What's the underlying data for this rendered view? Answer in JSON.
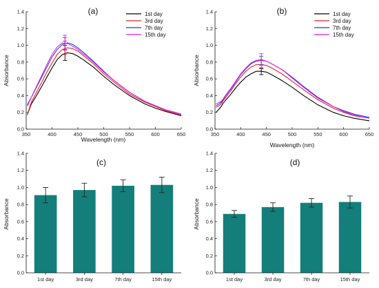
{
  "chart_data": [
    {
      "panel": "(a)",
      "type": "line",
      "xlabel": "Wavelength (nm)",
      "ylabel": "Absorbance",
      "xlim": [
        350,
        650
      ],
      "ylim": [
        0,
        1.4
      ],
      "xticks": [
        "350",
        "400",
        "450",
        "500",
        "550",
        "600",
        "650"
      ],
      "yticks": [
        "0.0",
        "0.2",
        "0.4",
        "0.6",
        "0.8",
        "1.0",
        "1.2",
        "1.4"
      ],
      "legend_position": "top-right",
      "series": [
        {
          "name": "1st day",
          "color": "#000000",
          "x": [
            352,
            360,
            370,
            380,
            390,
            400,
            410,
            420,
            430,
            440,
            450,
            460,
            480,
            500,
            520,
            550,
            580,
            600,
            620,
            650
          ],
          "y": [
            0.17,
            0.3,
            0.4,
            0.51,
            0.62,
            0.73,
            0.83,
            0.89,
            0.91,
            0.9,
            0.87,
            0.83,
            0.74,
            0.63,
            0.53,
            0.4,
            0.3,
            0.25,
            0.21,
            0.16
          ]
        },
        {
          "name": "3rd day",
          "color": "#e8242a",
          "x": [
            352,
            360,
            370,
            380,
            390,
            400,
            410,
            420,
            430,
            440,
            450,
            460,
            480,
            500,
            520,
            550,
            580,
            600,
            620,
            650
          ],
          "y": [
            0.17,
            0.32,
            0.44,
            0.56,
            0.68,
            0.79,
            0.89,
            0.95,
            0.97,
            0.96,
            0.93,
            0.88,
            0.78,
            0.66,
            0.56,
            0.42,
            0.32,
            0.27,
            0.22,
            0.17
          ]
        },
        {
          "name": "7th day",
          "color": "#1f3fe0",
          "x": [
            352,
            360,
            370,
            380,
            390,
            400,
            410,
            420,
            430,
            440,
            450,
            460,
            480,
            500,
            520,
            550,
            580,
            600,
            620,
            650
          ],
          "y": [
            0.29,
            0.38,
            0.5,
            0.62,
            0.74,
            0.86,
            0.95,
            1.01,
            1.03,
            1.01,
            0.97,
            0.92,
            0.81,
            0.69,
            0.58,
            0.44,
            0.33,
            0.28,
            0.23,
            0.18
          ]
        },
        {
          "name": "15th day",
          "color": "#e61be6",
          "x": [
            352,
            360,
            370,
            380,
            390,
            400,
            410,
            420,
            430,
            440,
            450,
            460,
            480,
            500,
            520,
            550,
            580,
            600,
            620,
            650
          ],
          "y": [
            0.27,
            0.38,
            0.51,
            0.64,
            0.77,
            0.89,
            0.98,
            1.03,
            1.02,
            0.99,
            0.95,
            0.9,
            0.8,
            0.68,
            0.58,
            0.44,
            0.33,
            0.28,
            0.23,
            0.18
          ]
        }
      ],
      "error_bars": [
        {
          "x": 425,
          "y": 0.91,
          "err": 0.09,
          "color": "#000000"
        },
        {
          "x": 425,
          "y": 0.97,
          "err": 0.08,
          "color": "#e8242a"
        },
        {
          "x": 425,
          "y": 1.02,
          "err": 0.07,
          "color": "#1f3fe0"
        },
        {
          "x": 425,
          "y": 1.03,
          "err": 0.09,
          "color": "#e61be6"
        }
      ]
    },
    {
      "panel": "(b)",
      "type": "line",
      "xlabel": "Wavelength (nm)",
      "ylabel": "Absorbance",
      "xlim": [
        350,
        650
      ],
      "ylim": [
        0,
        1.4
      ],
      "xticks": [
        "350",
        "400",
        "450",
        "500",
        "550",
        "600",
        "650"
      ],
      "yticks": [
        "0.0",
        "0.2",
        "0.4",
        "0.6",
        "0.8",
        "1.0",
        "1.2",
        "1.4"
      ],
      "legend_position": "top-right",
      "series": [
        {
          "name": "1st day",
          "color": "#000000",
          "x": [
            352,
            358,
            362,
            366,
            370,
            380,
            390,
            400,
            410,
            420,
            430,
            440,
            450,
            460,
            480,
            500,
            520,
            550,
            580,
            600,
            620,
            650
          ],
          "y": [
            0.2,
            0.24,
            0.27,
            0.31,
            0.34,
            0.41,
            0.49,
            0.56,
            0.62,
            0.66,
            0.69,
            0.69,
            0.68,
            0.65,
            0.58,
            0.5,
            0.41,
            0.29,
            0.2,
            0.16,
            0.13,
            0.1
          ]
        },
        {
          "name": "3rd day",
          "color": "#e8242a",
          "x": [
            352,
            358,
            362,
            366,
            370,
            380,
            390,
            400,
            410,
            420,
            430,
            440,
            450,
            460,
            480,
            500,
            520,
            550,
            580,
            600,
            620,
            650
          ],
          "y": [
            0.26,
            0.28,
            0.3,
            0.34,
            0.37,
            0.45,
            0.54,
            0.62,
            0.69,
            0.74,
            0.77,
            0.77,
            0.76,
            0.73,
            0.66,
            0.57,
            0.48,
            0.35,
            0.25,
            0.2,
            0.16,
            0.13
          ]
        },
        {
          "name": "7th day",
          "color": "#1f3fe0",
          "x": [
            352,
            358,
            362,
            366,
            370,
            380,
            390,
            400,
            410,
            420,
            430,
            440,
            450,
            460,
            480,
            500,
            520,
            550,
            580,
            600,
            620,
            650
          ],
          "y": [
            0.28,
            0.3,
            0.32,
            0.35,
            0.39,
            0.47,
            0.56,
            0.65,
            0.72,
            0.78,
            0.81,
            0.82,
            0.81,
            0.78,
            0.71,
            0.62,
            0.52,
            0.38,
            0.27,
            0.22,
            0.18,
            0.14
          ]
        },
        {
          "name": "15th day",
          "color": "#e61be6",
          "x": [
            352,
            358,
            362,
            366,
            370,
            380,
            390,
            400,
            410,
            420,
            430,
            440,
            450,
            460,
            480,
            500,
            520,
            550,
            580,
            600,
            620,
            650
          ],
          "y": [
            0.3,
            0.32,
            0.33,
            0.36,
            0.4,
            0.48,
            0.57,
            0.66,
            0.73,
            0.79,
            0.82,
            0.83,
            0.81,
            0.78,
            0.71,
            0.61,
            0.51,
            0.37,
            0.27,
            0.21,
            0.17,
            0.13
          ]
        }
      ],
      "error_bars": [
        {
          "x": 440,
          "y": 0.69,
          "err": 0.04,
          "color": "#000000"
        },
        {
          "x": 440,
          "y": 0.77,
          "err": 0.05,
          "color": "#e8242a"
        },
        {
          "x": 440,
          "y": 0.82,
          "err": 0.05,
          "color": "#1f3fe0"
        },
        {
          "x": 440,
          "y": 0.83,
          "err": 0.07,
          "color": "#e61be6"
        }
      ]
    },
    {
      "panel": "(c)",
      "type": "bar",
      "ylabel": "Absorbance",
      "ylim": [
        0,
        1.4
      ],
      "yticks": [
        "0.0",
        "0.2",
        "0.4",
        "0.6",
        "0.8",
        "1.0",
        "1.2",
        "1.4"
      ],
      "bar_color": "#147f7a",
      "categories": [
        "1st day",
        "3rd day",
        "7th day",
        "15th day"
      ],
      "values": [
        0.91,
        0.97,
        1.02,
        1.03
      ],
      "errors": [
        0.09,
        0.08,
        0.07,
        0.09
      ]
    },
    {
      "panel": "(d)",
      "type": "bar",
      "ylabel": "Absorbance",
      "ylim": [
        0,
        1.4
      ],
      "yticks": [
        "0.0",
        "0.2",
        "0.4",
        "0.6",
        "0.8",
        "1.0",
        "1.2",
        "1.4"
      ],
      "bar_color": "#147f7a",
      "categories": [
        "1st day",
        "3rd day",
        "7th day",
        "15th day"
      ],
      "values": [
        0.69,
        0.77,
        0.82,
        0.83
      ],
      "errors": [
        0.04,
        0.05,
        0.05,
        0.07
      ]
    }
  ]
}
